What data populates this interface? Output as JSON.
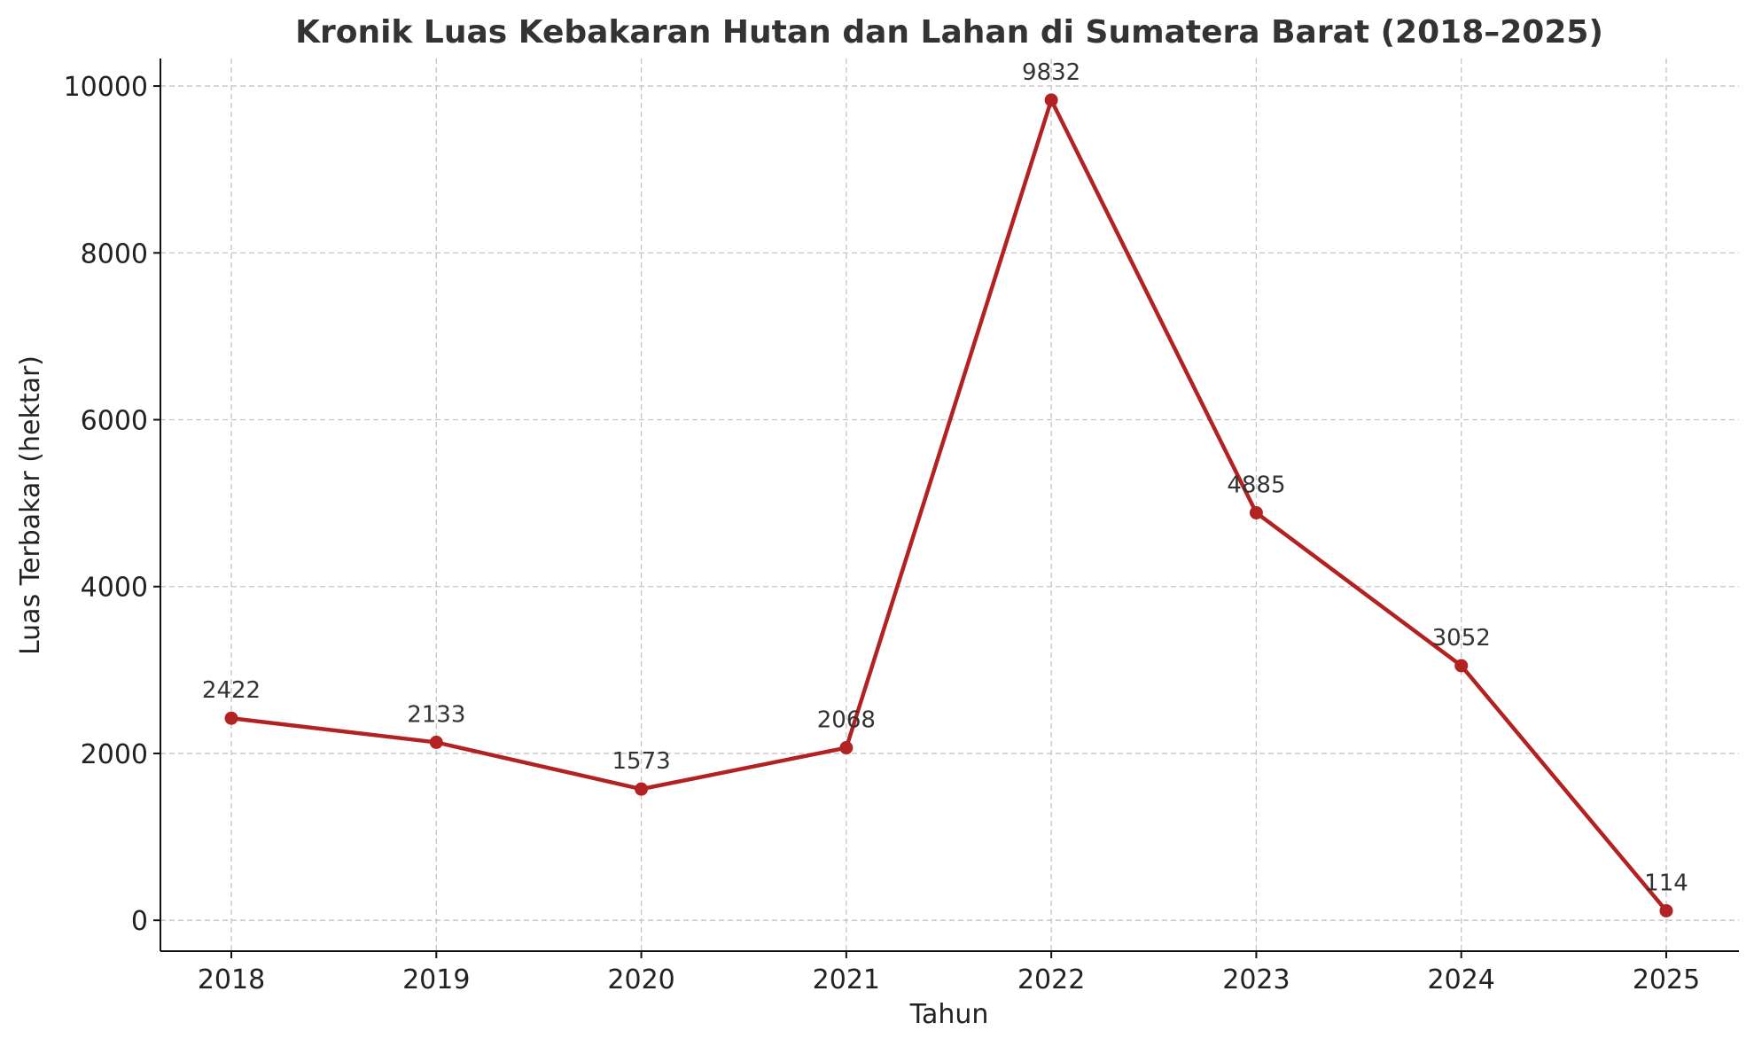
{
  "chart_data": {
    "type": "line",
    "title": "Kronik Luas Kebakaran Hutan dan Lahan di Sumatera Barat (2018–2025)",
    "xlabel": "Tahun",
    "ylabel": "Luas Terbakar (hektar)",
    "x": [
      "2018",
      "2019",
      "2020",
      "2021",
      "2022",
      "2023",
      "2024",
      "2025"
    ],
    "series": [
      {
        "values": [
          2422,
          2133,
          1573,
          2068,
          9832,
          4885,
          3052,
          114
        ]
      }
    ],
    "data_labels": [
      "2422",
      "2133",
      "1573",
      "2068",
      "9832",
      "4885",
      "3052",
      "114"
    ],
    "yticks": [
      0,
      2000,
      4000,
      6000,
      8000,
      10000
    ],
    "ytick_labels": [
      "0",
      "2000",
      "4000",
      "6000",
      "8000",
      "10000"
    ],
    "ylim": [
      -370,
      10330
    ],
    "grid": true,
    "legend": "none",
    "line_color": "#b22222",
    "marker": "circle"
  }
}
